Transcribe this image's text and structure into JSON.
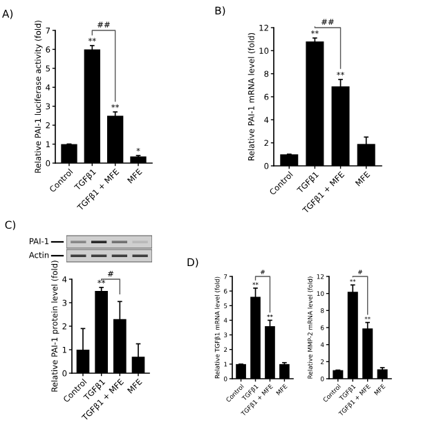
{
  "chart_data": [
    {
      "type": "bar",
      "title": "A)",
      "ylabel": "Relative PAI-1 luciferase activity (fold)",
      "categories": [
        "Control",
        "TGFβ1",
        "TGFβ1 + MFE",
        "MFE"
      ],
      "values": [
        1,
        6.0,
        2.5,
        0.35
      ],
      "errors": [
        null,
        0.2,
        0.2,
        0.05
      ],
      "color": "#000000",
      "ylim": [
        0,
        7
      ],
      "yticks": [
        0,
        1,
        2,
        3,
        4,
        5,
        6,
        7
      ],
      "grid": false,
      "annotations": [
        {
          "text": "**",
          "x": "TGFβ1",
          "y": 6.2
        },
        {
          "text": "**",
          "x": "TGFβ1 + MFE",
          "y": 2.7
        },
        {
          "text": "*",
          "x": "MFE",
          "y": 0.4
        },
        "##"
      ]
    },
    {
      "type": "bar",
      "title": "B)",
      "ylabel": "Relative PAI-1 mRNA level (fold)",
      "categories": [
        "Control",
        "TGFβ1",
        "TGFβ1 + MFE",
        "MFE"
      ],
      "values": [
        1,
        10.8,
        6.9,
        1.9
      ],
      "errors": [
        null,
        0.3,
        0.6,
        0.6
      ],
      "color": "#000000",
      "ylim": [
        0,
        12
      ],
      "yticks": [
        0,
        2,
        4,
        6,
        8,
        10,
        12
      ],
      "grid": false,
      "annotations": [
        {
          "text": "**",
          "x": "TGFβ1",
          "y": 11.1
        },
        {
          "text": "**",
          "x": "TGFβ1 + MFE",
          "y": 7.5
        },
        "##"
      ]
    },
    {
      "type": "other",
      "title": "C)",
      "annotations": [
        "PAI-1",
        "Actin"
      ]
    },
    {
      "type": "bar",
      "ylabel": "Relative PAI-1 protein level (fold)",
      "categories": [
        "Control",
        "TGFβ1",
        "TGFβ1 + MFE",
        "MFE"
      ],
      "values": [
        1,
        3.5,
        2.3,
        0.7
      ],
      "errors": [
        0.9,
        0.15,
        0.75,
        0.55
      ],
      "color": "#000000",
      "ylim": [
        0,
        4
      ],
      "yticks": [
        0,
        1,
        2,
        3,
        4
      ],
      "grid": false,
      "annotations": [
        {
          "text": "**",
          "x": "TGFβ1",
          "y": 3.65
        },
        "#"
      ]
    },
    {
      "type": "bar",
      "title": "D)",
      "ylabel": "Relative TGFβ1 mRNA level (fold)",
      "categories": [
        "Control",
        "TGFβ1",
        "TGFβ1 + MFE",
        "MFE"
      ],
      "values": [
        1,
        5.6,
        3.6,
        1.0
      ],
      "errors": [
        null,
        0.6,
        0.4,
        0.1
      ],
      "color": "#000000",
      "ylim": [
        0,
        7
      ],
      "yticks": [
        0,
        1,
        2,
        3,
        4,
        5,
        6,
        7
      ],
      "grid": false,
      "annotations": [
        {
          "text": "**",
          "x": "TGFβ1",
          "y": 6.2
        },
        {
          "text": "**",
          "x": "TGFβ1 + MFE",
          "y": 4.0
        },
        "#"
      ]
    },
    {
      "type": "bar",
      "ylabel": "Relative MMP-2 mRNA level (fold)",
      "categories": [
        "Control",
        "TGFβ1",
        "TGFβ1 + MFE",
        "MFE"
      ],
      "values": [
        1,
        10.2,
        5.9,
        1.1
      ],
      "errors": [
        null,
        0.8,
        0.7,
        0.2
      ],
      "color": "#000000",
      "ylim": [
        0,
        12
      ],
      "yticks": [
        0,
        2,
        4,
        6,
        8,
        10,
        12
      ],
      "grid": false,
      "annotations": [
        {
          "text": "**",
          "x": "TGFβ1",
          "y": 11.0
        },
        {
          "text": "**",
          "x": "TGFβ1 + MFE",
          "y": 6.6
        },
        "#"
      ]
    }
  ]
}
